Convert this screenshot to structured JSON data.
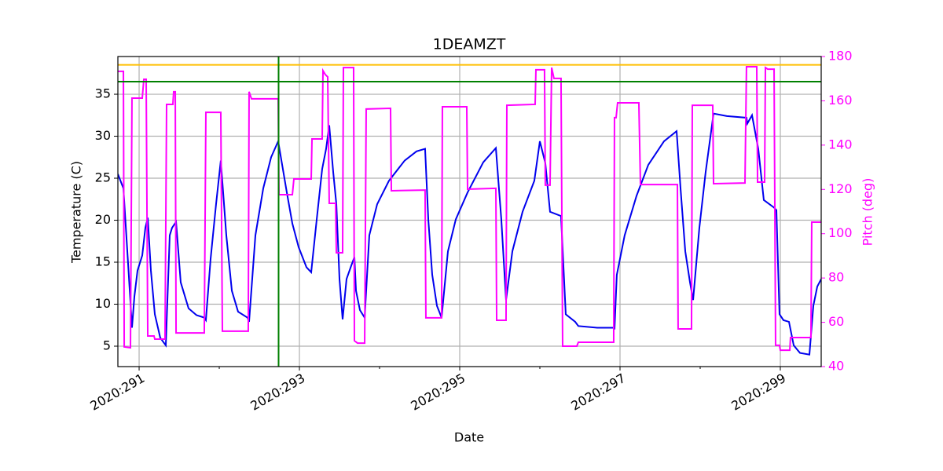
{
  "chart_data": {
    "type": "line",
    "title": "1DEAMZT",
    "x_label": "Date",
    "y_label": "Temperature (C)",
    "y2_label": "Pitch (deg)",
    "y2_color": "#ff00ff",
    "xlim": [
      290.735,
      299.51
    ],
    "xticks": [
      {
        "value": 291,
        "label": "2020:291"
      },
      {
        "value": 293,
        "label": "2020:293"
      },
      {
        "value": 295,
        "label": "2020:295"
      },
      {
        "value": 297,
        "label": "2020:297"
      },
      {
        "value": 299,
        "label": "2020:299"
      }
    ],
    "xticks_minor": [
      292,
      294,
      296,
      298
    ],
    "ylim": [
      2.57,
      39.49
    ],
    "yticks": [
      5,
      10,
      15,
      20,
      25,
      30,
      35
    ],
    "y2lim": [
      40,
      180
    ],
    "y2ticks": [
      40,
      60,
      80,
      100,
      120,
      140,
      160,
      180
    ],
    "grid": true,
    "series": [
      {
        "color": "#0000ee",
        "axis": "y",
        "x": [
          290.735,
          290.804,
          290.862,
          290.911,
          290.941,
          290.98,
          291.039,
          291.078,
          291.108,
          291.147,
          291.196,
          291.264,
          291.333,
          291.382,
          291.411,
          291.461,
          291.519,
          291.617,
          291.715,
          291.813,
          291.833,
          291.892,
          291.96,
          292.019,
          292.088,
          292.157,
          292.235,
          292.353,
          292.372,
          292.451,
          292.549,
          292.647,
          292.735,
          292.843,
          292.912,
          292.99,
          293.088,
          293.147,
          293.216,
          293.284,
          293.333,
          293.372,
          293.422,
          293.461,
          293.5,
          293.539,
          293.588,
          293.647,
          293.686,
          293.706,
          293.755,
          293.814,
          293.872,
          293.97,
          294.117,
          294.313,
          294.461,
          294.568,
          294.608,
          294.657,
          294.716,
          294.774,
          294.853,
          294.951,
          295.098,
          295.294,
          295.451,
          295.519,
          295.578,
          295.657,
          295.784,
          295.931,
          296.0,
          296.068,
          296.127,
          296.264,
          296.323,
          296.441,
          296.48,
          296.715,
          296.921,
          296.931,
          296.96,
          297.058,
          297.206,
          297.353,
          297.549,
          297.706,
          297.755,
          297.814,
          297.873,
          297.912,
          297.99,
          298.068,
          298.167,
          298.333,
          298.578,
          298.588,
          298.647,
          298.725,
          298.794,
          298.922,
          298.951,
          298.99,
          299.039,
          299.108,
          299.167,
          299.245,
          299.363,
          299.412,
          299.461,
          299.51
        ],
        "values": [
          25.5,
          23.8,
          14.9,
          7.2,
          10.9,
          14.0,
          15.8,
          19.1,
          20.3,
          14.0,
          8.8,
          6.0,
          5.1,
          18.2,
          19.1,
          19.8,
          12.6,
          9.5,
          8.7,
          8.4,
          8.1,
          15.4,
          21.9,
          27.1,
          18.2,
          11.6,
          9.1,
          8.4,
          7.9,
          18.2,
          23.8,
          27.5,
          29.4,
          23.3,
          19.6,
          16.8,
          14.4,
          13.8,
          20.1,
          26.1,
          28.5,
          31.3,
          25.7,
          21.9,
          13.0,
          8.2,
          13.0,
          14.6,
          15.6,
          11.6,
          9.3,
          8.4,
          18.2,
          21.9,
          24.7,
          27.1,
          28.2,
          28.5,
          20.1,
          13.5,
          9.8,
          8.4,
          16.3,
          20.1,
          23.3,
          26.9,
          28.6,
          20.1,
          10.5,
          16.3,
          21.0,
          24.7,
          29.4,
          26.8,
          21.0,
          20.5,
          8.8,
          7.9,
          7.4,
          7.2,
          7.2,
          7.0,
          13.5,
          18.2,
          22.9,
          26.6,
          29.4,
          30.6,
          23.8,
          16.3,
          12.6,
          10.5,
          19.1,
          25.7,
          32.7,
          32.4,
          32.2,
          31.5,
          32.5,
          28.5,
          22.4,
          21.5,
          21.2,
          8.8,
          8.1,
          7.9,
          5.1,
          4.2,
          4.0,
          9.8,
          12.1,
          13.0
        ]
      },
      {
        "color": "#ff00ff",
        "axis": "y2",
        "x": [
          290.735,
          290.804,
          290.814,
          290.892,
          290.911,
          291.039,
          291.059,
          291.088,
          291.108,
          291.186,
          291.196,
          291.323,
          291.343,
          291.421,
          291.431,
          291.451,
          291.461,
          291.813,
          291.833,
          292.019,
          292.039,
          292.362,
          292.372,
          292.402,
          292.735,
          292.745,
          292.912,
          292.931,
          293.147,
          293.157,
          293.284,
          293.294,
          293.324,
          293.353,
          293.372,
          293.451,
          293.461,
          293.539,
          293.549,
          293.676,
          293.686,
          293.725,
          293.814,
          293.833,
          294.137,
          294.147,
          294.568,
          294.578,
          294.774,
          294.784,
          295.088,
          295.098,
          295.451,
          295.461,
          295.578,
          295.588,
          295.941,
          295.951,
          296.058,
          296.068,
          296.127,
          296.147,
          296.176,
          296.264,
          296.284,
          296.461,
          296.48,
          296.921,
          296.931,
          296.951,
          296.97,
          297.235,
          297.255,
          297.716,
          297.725,
          297.892,
          297.902,
          298.157,
          298.167,
          298.559,
          298.578,
          298.706,
          298.716,
          298.804,
          298.814,
          298.843,
          298.922,
          298.941,
          298.99,
          299.0,
          299.118,
          299.127,
          299.382,
          299.392,
          299.51
        ],
        "values": [
          173.3,
          173.3,
          48.9,
          48.5,
          161.2,
          161.2,
          169.7,
          169.7,
          53.8,
          53.8,
          52.4,
          52.4,
          158.4,
          158.4,
          164.1,
          164.1,
          55.2,
          55.2,
          154.8,
          154.8,
          56.0,
          56.0,
          164.1,
          160.9,
          160.9,
          117.6,
          117.6,
          124.7,
          124.7,
          142.8,
          142.8,
          173.6,
          171.8,
          170.8,
          113.7,
          113.7,
          91.4,
          91.4,
          175.0,
          175.0,
          51.7,
          50.6,
          50.6,
          156.3,
          156.6,
          119.4,
          119.7,
          62.0,
          62.0,
          157.3,
          157.3,
          120.1,
          120.5,
          60.9,
          60.9,
          158.0,
          158.4,
          174.0,
          174.0,
          121.9,
          121.9,
          175.0,
          170.1,
          170.1,
          49.2,
          49.2,
          51.0,
          51.0,
          152.4,
          152.4,
          159.1,
          159.1,
          122.2,
          122.2,
          57.0,
          57.0,
          158.0,
          158.0,
          122.6,
          122.9,
          175.4,
          175.4,
          123.3,
          123.3,
          175.0,
          174.3,
          174.3,
          49.6,
          49.6,
          47.4,
          47.4,
          53.1,
          53.1,
          105.2,
          105.2
        ]
      }
    ],
    "hlines": [
      {
        "value": 38.5,
        "color": "#ffbf00"
      },
      {
        "value": 36.5,
        "color": "#008000"
      }
    ],
    "vlines": [
      {
        "value": 292.74,
        "color": "#008000"
      }
    ]
  }
}
